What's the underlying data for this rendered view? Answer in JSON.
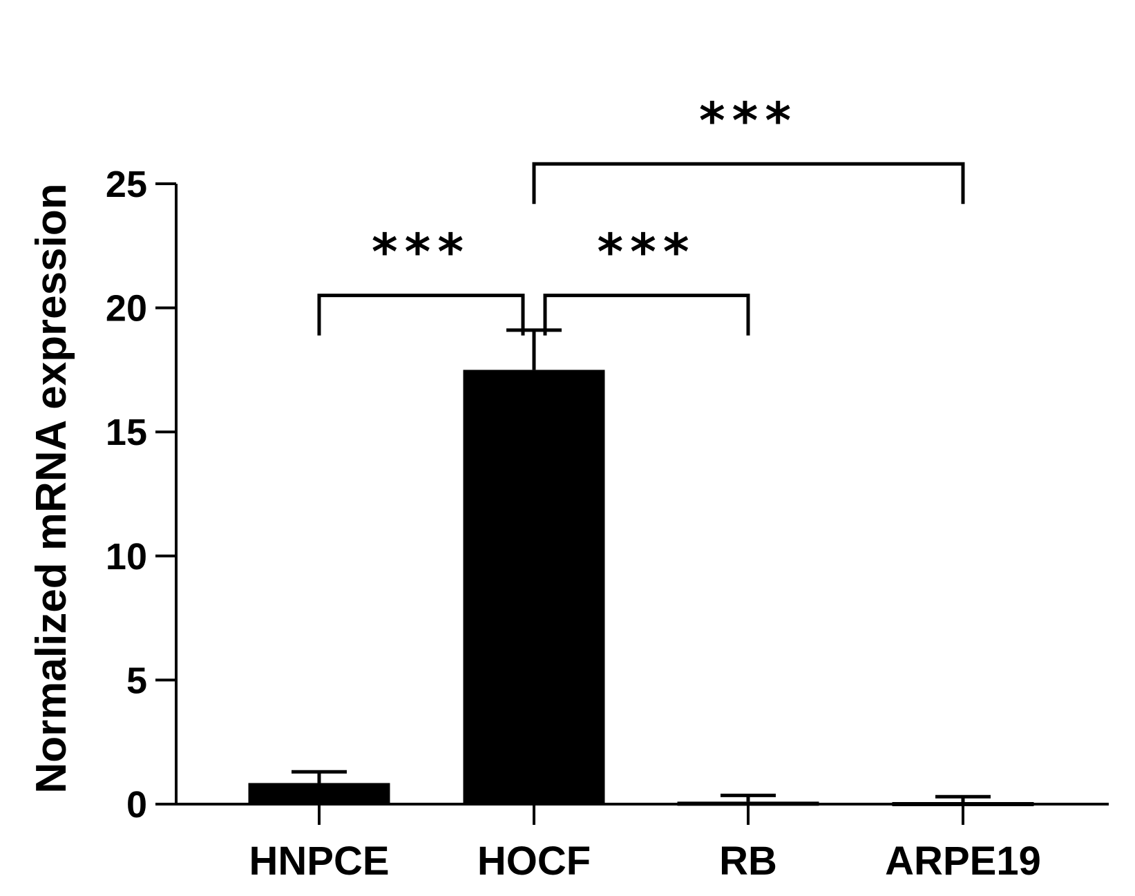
{
  "chart_data": {
    "type": "bar",
    "categories": [
      "HNPCE",
      "HOCF",
      "RB",
      "ARPE19"
    ],
    "values": [
      0.85,
      17.5,
      0.1,
      -0.1
    ],
    "errors": [
      0.45,
      1.6,
      0.25,
      0.3
    ],
    "ylabel": "Normalized mRNA expression",
    "xlabel": "",
    "ylim": [
      0,
      25
    ],
    "yticks": [
      0,
      5,
      10,
      15,
      20,
      25
    ],
    "bar_color": "#000000",
    "grid": false,
    "legend": "none",
    "significance": [
      {
        "from": 0,
        "to": 1,
        "label": "***",
        "level": 20.5
      },
      {
        "from": 1,
        "to": 2,
        "label": "***",
        "level": 20.5
      },
      {
        "from": 1,
        "to": 3,
        "label": "***",
        "level": 25.8
      }
    ]
  }
}
